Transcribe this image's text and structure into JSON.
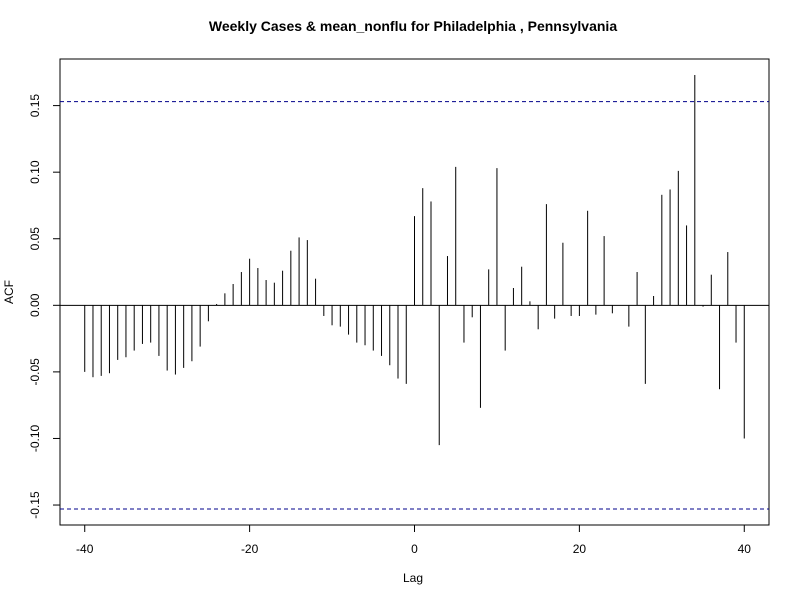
{
  "chart_data": {
    "type": "bar",
    "title": "Weekly Cases & mean_nonflu for Philadelphia , Pennsylvania",
    "xlabel": "Lag",
    "ylabel": "ACF",
    "xlim": [
      -43,
      43
    ],
    "ylim": [
      -0.165,
      0.185
    ],
    "x_ticks": [
      -40,
      -20,
      0,
      20,
      40
    ],
    "x_tick_labels": [
      "-40",
      "-20",
      "0",
      "20",
      "40"
    ],
    "y_ticks": [
      -0.15,
      -0.1,
      -0.05,
      0.0,
      0.05,
      0.1,
      0.15
    ],
    "y_tick_labels": [
      "-0.15",
      "-0.10",
      "-0.05",
      "0.00",
      "0.05",
      "0.10",
      "0.15"
    ],
    "confidence_limit": 0.153,
    "confidence_color": "#00008b",
    "lags": [
      -40,
      -39,
      -38,
      -37,
      -36,
      -35,
      -34,
      -33,
      -32,
      -31,
      -30,
      -29,
      -28,
      -27,
      -26,
      -25,
      -24,
      -23,
      -22,
      -21,
      -20,
      -19,
      -18,
      -17,
      -16,
      -15,
      -14,
      -13,
      -12,
      -11,
      -10,
      -9,
      -8,
      -7,
      -6,
      -5,
      -4,
      -3,
      -2,
      -1,
      0,
      1,
      2,
      3,
      4,
      5,
      6,
      7,
      8,
      9,
      10,
      11,
      12,
      13,
      14,
      15,
      16,
      17,
      18,
      19,
      20,
      21,
      22,
      23,
      24,
      25,
      26,
      27,
      28,
      29,
      30,
      31,
      32,
      33,
      34,
      35,
      36,
      37,
      38,
      39,
      40
    ],
    "values": [
      -0.05,
      -0.054,
      -0.053,
      -0.051,
      -0.041,
      -0.039,
      -0.034,
      -0.029,
      -0.028,
      -0.038,
      -0.049,
      -0.052,
      -0.047,
      -0.042,
      -0.031,
      -0.012,
      0.001,
      0.009,
      0.016,
      0.025,
      0.035,
      0.028,
      0.019,
      0.017,
      0.026,
      0.041,
      0.051,
      0.049,
      0.02,
      -0.008,
      -0.015,
      -0.016,
      -0.022,
      -0.028,
      -0.03,
      -0.034,
      -0.038,
      -0.045,
      -0.055,
      -0.059,
      0.067,
      0.088,
      0.078,
      -0.105,
      0.037,
      0.104,
      -0.028,
      -0.009,
      -0.077,
      0.027,
      0.103,
      -0.034,
      0.013,
      0.029,
      0.003,
      -0.018,
      0.076,
      -0.01,
      0.047,
      -0.008,
      -0.008,
      0.071,
      -0.007,
      0.052,
      -0.006,
      0.0,
      -0.016,
      0.025,
      -0.059,
      0.007,
      0.083,
      0.087,
      0.101,
      0.06,
      0.173,
      -0.001,
      0.023,
      -0.063,
      0.04,
      -0.028,
      -0.1
    ]
  }
}
